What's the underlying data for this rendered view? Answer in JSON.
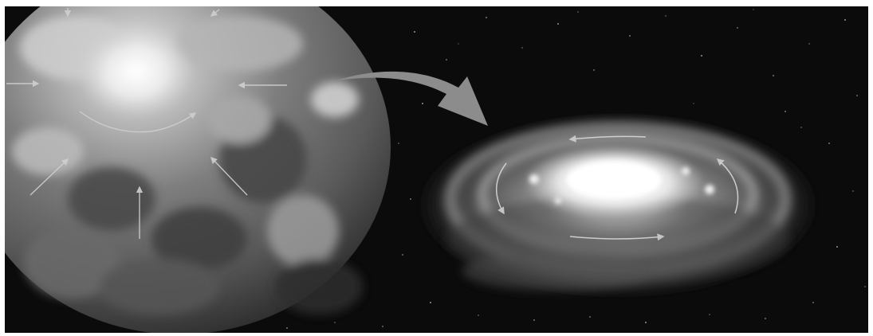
{
  "colors": {
    "frame": "#ffffff",
    "space_background": "#0b0b0b",
    "cloud_light": "#d8d8d8",
    "cloud_mid": "#8a8a8a",
    "cloud_dark": "#3a3a3a",
    "core_glow": "#f5f5f5",
    "arrow_fill": "#8c8c8c",
    "motion_arrows": "#cfcfcf"
  },
  "icons": {
    "transition": "curved-arrow-icon",
    "infall": "inward-arrow-icon",
    "rotation": "rotation-arrow-icon"
  }
}
